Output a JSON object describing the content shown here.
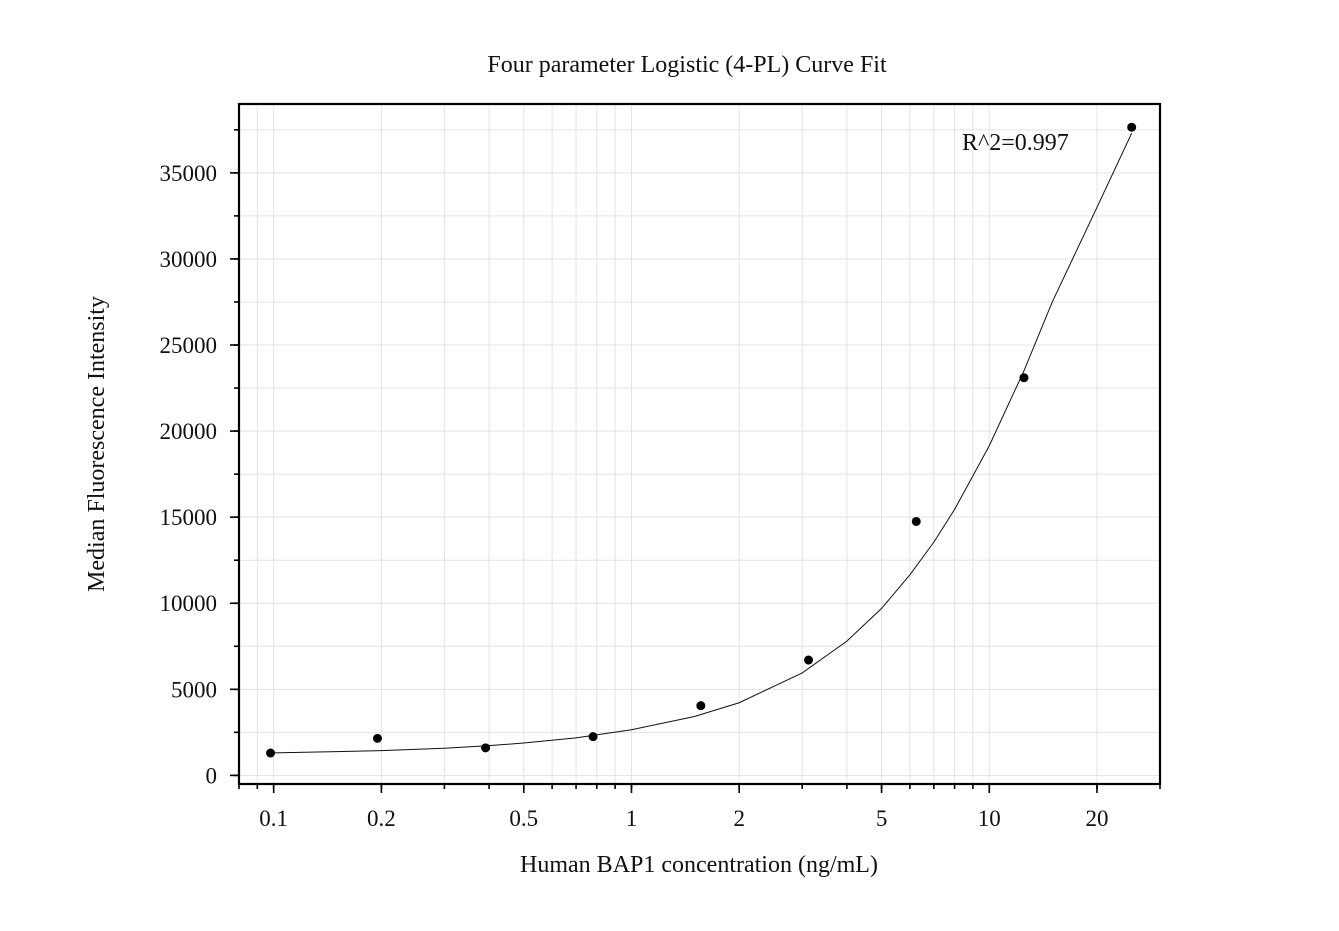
{
  "chart_data": {
    "type": "scatter",
    "title": "Four parameter Logistic (4-PL) Curve Fit",
    "xlabel": "Human BAP1 concentration (ng/mL)",
    "ylabel": "Median Fluorescence Intensity",
    "x_scale": "log",
    "xlim": [
      0.08,
      30
    ],
    "ylim": [
      -500,
      39000
    ],
    "x_ticks": [
      0.1,
      0.2,
      0.5,
      1,
      2,
      5,
      10,
      20
    ],
    "x_tick_labels": [
      "0.1",
      "0.2",
      "0.5",
      "1",
      "2",
      "5",
      "10",
      "20"
    ],
    "y_ticks": [
      0,
      5000,
      10000,
      15000,
      20000,
      25000,
      30000,
      35000
    ],
    "y_tick_labels": [
      "0",
      "5000",
      "10000",
      "15000",
      "20000",
      "25000",
      "30000",
      "35000"
    ],
    "grid": true,
    "annotation": "R^2=0.997",
    "series": [
      {
        "type": "scatter",
        "x": [
          0.098,
          0.195,
          0.391,
          0.781,
          1.5625,
          3.125,
          6.25,
          12.5,
          25
        ],
        "y": [
          1300,
          2150,
          1600,
          2250,
          4050,
          6700,
          14750,
          23100,
          37650
        ]
      },
      {
        "type": "line",
        "fit": "4PL",
        "x": [
          0.1,
          0.15,
          0.2,
          0.3,
          0.4,
          0.5,
          0.7,
          1,
          1.5,
          2,
          3,
          4,
          5,
          6,
          7,
          8,
          10,
          12.5,
          15,
          20,
          25
        ],
        "y": [
          1310,
          1380,
          1440,
          1580,
          1730,
          1880,
          2180,
          2650,
          3420,
          4220,
          5950,
          7800,
          9700,
          11650,
          13550,
          15450,
          19150,
          23500,
          27500,
          33000,
          37300
        ]
      }
    ]
  }
}
